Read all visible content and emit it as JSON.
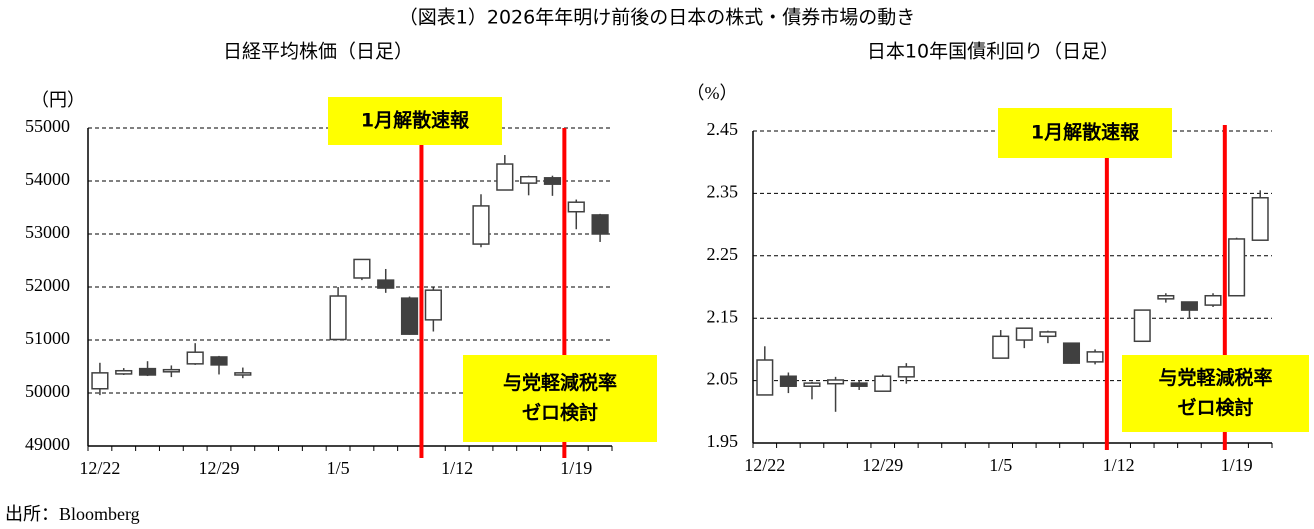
{
  "title": "（図表1）2026年年明け前後の日本の株式・債券市場の動き",
  "source": "出所：Bloomberg",
  "chart_data": [
    {
      "type": "candlestick",
      "title": "日経平均株価（日足）",
      "y_unit": "（円）",
      "categories": [
        "12/22",
        null,
        null,
        null,
        null,
        "12/29",
        null,
        null,
        null,
        null,
        "1/5",
        null,
        null,
        null,
        null,
        "1/12",
        null,
        null,
        null,
        null,
        "1/19",
        null
      ],
      "open": [
        50080,
        50360,
        50460,
        50400,
        50550,
        50680,
        50340,
        null,
        null,
        null,
        51010,
        52170,
        52130,
        51790,
        51380,
        null,
        52810,
        53830,
        53960,
        54060,
        53420,
        53360
      ],
      "high": [
        50570,
        50470,
        50600,
        50520,
        50940,
        50700,
        50480,
        null,
        null,
        null,
        52000,
        52520,
        52340,
        51820,
        51990,
        null,
        53750,
        54490,
        54100,
        54100,
        53650,
        53380
      ],
      "low": [
        49960,
        50340,
        50320,
        50300,
        50530,
        50350,
        50280,
        null,
        null,
        null,
        51010,
        52130,
        51890,
        51100,
        51160,
        null,
        52750,
        53830,
        53730,
        53720,
        53090,
        52850
      ],
      "close": [
        50380,
        50420,
        50340,
        50440,
        50770,
        50530,
        50380,
        null,
        null,
        null,
        51830,
        52520,
        51980,
        51110,
        51940,
        null,
        53530,
        54320,
        54080,
        53940,
        53600,
        53000
      ],
      "up_color": "#ffffff",
      "down_color": "#404040",
      "edge_color": "#404040",
      "ylim": [
        49000,
        55000
      ],
      "yticks": [
        49000,
        50000,
        51000,
        52000,
        53000,
        54000,
        55000
      ],
      "grid": true,
      "annotations": [
        [
          "1月解散速報"
        ],
        [
          "与党軽減税率",
          "ゼロ検討"
        ]
      ],
      "annotation_color": "#ffff00",
      "marker_color": "#ff0000"
    },
    {
      "type": "candlestick",
      "title": "日本10年国債利回り（日足）",
      "y_unit": "（%）",
      "categories": [
        "12/22",
        null,
        null,
        null,
        null,
        "12/29",
        null,
        null,
        null,
        null,
        "1/5",
        null,
        null,
        null,
        null,
        "1/12",
        null,
        null,
        null,
        null,
        "1/19",
        null
      ],
      "open": [
        2.027,
        2.057,
        2.041,
        2.045,
        2.046,
        2.033,
        2.056,
        null,
        null,
        null,
        2.086,
        2.115,
        2.121,
        2.11,
        2.08,
        null,
        2.113,
        2.181,
        2.176,
        2.171,
        2.186,
        2.275
      ],
      "high": [
        2.105,
        2.063,
        2.048,
        2.056,
        2.05,
        2.06,
        2.078,
        null,
        null,
        null,
        2.131,
        2.134,
        2.13,
        2.11,
        2.1,
        null,
        2.163,
        2.19,
        2.176,
        2.19,
        2.279,
        2.355
      ],
      "low": [
        2.027,
        2.03,
        2.02,
        2.0,
        2.035,
        2.033,
        2.045,
        null,
        null,
        null,
        2.086,
        2.102,
        2.11,
        2.077,
        2.076,
        null,
        2.113,
        2.175,
        2.149,
        2.168,
        2.186,
        2.275
      ],
      "close": [
        2.083,
        2.041,
        2.046,
        2.051,
        2.041,
        2.057,
        2.072,
        null,
        null,
        null,
        2.121,
        2.134,
        2.128,
        2.078,
        2.096,
        null,
        2.163,
        2.186,
        2.163,
        2.186,
        2.277,
        2.343
      ],
      "up_color": "#ffffff",
      "down_color": "#404040",
      "edge_color": "#404040",
      "ylim": [
        1.95,
        2.45
      ],
      "yticks": [
        1.95,
        2.05,
        2.15,
        2.25,
        2.35,
        2.45
      ],
      "grid": true,
      "annotations": [
        [
          "1月解散速報"
        ],
        [
          "与党軽減税率",
          "ゼロ検討"
        ]
      ],
      "annotation_color": "#ffff00",
      "marker_color": "#ff0000"
    }
  ]
}
